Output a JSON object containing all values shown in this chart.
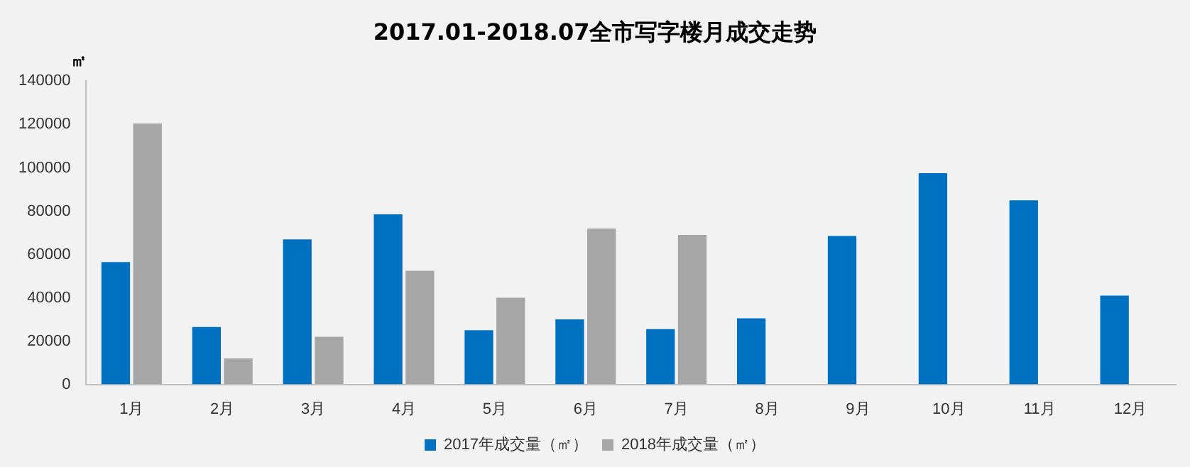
{
  "chart_data": {
    "type": "bar",
    "title": "2017.01-2018.07全市写字楼月成交走势",
    "ylabel": "㎡",
    "categories": [
      "1月",
      "2月",
      "3月",
      "4月",
      "5月",
      "6月",
      "7月",
      "8月",
      "9月",
      "10月",
      "11月",
      "12月"
    ],
    "series": [
      {
        "name": "2017年成交量（㎡）",
        "color": "#0070c0",
        "values": [
          56500,
          26500,
          67000,
          78500,
          25000,
          30000,
          25500,
          30500,
          68500,
          97500,
          85000,
          41000
        ]
      },
      {
        "name": "2018年成交量（㎡）",
        "color": "#a6a6a6",
        "values": [
          120500,
          12000,
          22000,
          52500,
          40000,
          72000,
          69000,
          null,
          null,
          null,
          null,
          null
        ]
      }
    ],
    "ylim": [
      0,
      140000
    ],
    "yticks": [
      0,
      20000,
      40000,
      60000,
      80000,
      100000,
      120000,
      140000
    ],
    "grid": false,
    "legend": "bottom"
  }
}
